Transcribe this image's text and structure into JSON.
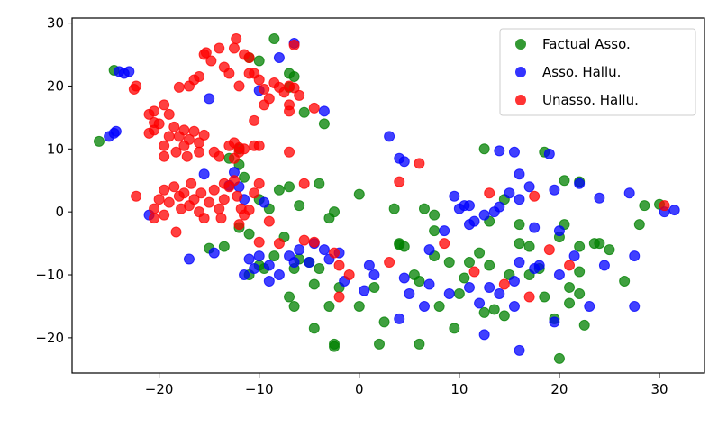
{
  "chart_data": {
    "type": "scatter",
    "title": "",
    "xlabel": "",
    "ylabel": "",
    "xlim": [
      -28.7,
      34.5
    ],
    "ylim": [
      -25.6,
      30.8
    ],
    "xticks": [
      -20,
      -10,
      0,
      10,
      20,
      30
    ],
    "yticks": [
      -20,
      -10,
      0,
      10,
      20,
      30
    ],
    "grid": false,
    "legend_position": "top-right",
    "series": [
      {
        "name": "Factual Asso.",
        "color": "#008000",
        "points": [
          [
            -26,
            11.2
          ],
          [
            -24.5,
            22.5
          ],
          [
            -11,
            24.5
          ],
          [
            -10,
            24
          ],
          [
            -8.5,
            27.5
          ],
          [
            -7,
            22
          ],
          [
            -6.5,
            21.5
          ],
          [
            -7,
            19.8
          ],
          [
            -5.5,
            15.8
          ],
          [
            -3.5,
            14
          ],
          [
            -12,
            10
          ],
          [
            -13,
            8.5
          ],
          [
            -12,
            7.5
          ],
          [
            -11.5,
            5.5
          ],
          [
            -10,
            2
          ],
          [
            -13.5,
            -5.5
          ],
          [
            -15,
            -5.8
          ],
          [
            -12,
            -2.5
          ],
          [
            -11,
            -3.5
          ],
          [
            -9,
            0.5
          ],
          [
            -8,
            3.5
          ],
          [
            -7,
            4
          ],
          [
            -6,
            1
          ],
          [
            -4,
            4.5
          ],
          [
            -2.5,
            0
          ],
          [
            -3,
            -1
          ],
          [
            0,
            2.8
          ],
          [
            -7.5,
            -4
          ],
          [
            -8.5,
            -7
          ],
          [
            -9.5,
            -9
          ],
          [
            -10,
            -8.5
          ],
          [
            -11,
            -10
          ],
          [
            -6.5,
            -9
          ],
          [
            -5,
            -8
          ],
          [
            -6,
            -7.5
          ],
          [
            -4,
            -9
          ],
          [
            -4.5,
            -11.5
          ],
          [
            -2,
            -12
          ],
          [
            -3,
            -15
          ],
          [
            -6.5,
            -15
          ],
          [
            -7,
            -13.5
          ],
          [
            -4.5,
            -18.5
          ],
          [
            -2.5,
            -21
          ],
          [
            -2.5,
            -21.4
          ],
          [
            0,
            -15
          ],
          [
            1.5,
            -12
          ],
          [
            2,
            -21
          ],
          [
            2.5,
            -17.5
          ],
          [
            4,
            -5
          ],
          [
            4.5,
            -5.5
          ],
          [
            3.5,
            0.5
          ],
          [
            6,
            -21
          ],
          [
            6,
            -11
          ],
          [
            5.5,
            -10
          ],
          [
            7.5,
            -7
          ],
          [
            7.5,
            -3
          ],
          [
            9,
            -8
          ],
          [
            8,
            -15
          ],
          [
            10,
            -13
          ],
          [
            9.5,
            -18.5
          ],
          [
            10.5,
            -10.5
          ],
          [
            11,
            -8
          ],
          [
            12,
            -6.5
          ],
          [
            13,
            -8.5
          ],
          [
            13.5,
            -15.5
          ],
          [
            12.5,
            -16
          ],
          [
            14.5,
            -16.5
          ],
          [
            15,
            -10
          ],
          [
            16,
            -5
          ],
          [
            16,
            -2
          ],
          [
            17,
            -5.5
          ],
          [
            17,
            -10
          ],
          [
            18,
            -9
          ],
          [
            18.5,
            -13.5
          ],
          [
            19.5,
            -17
          ],
          [
            20,
            -23.3
          ],
          [
            21,
            -12
          ],
          [
            21,
            -14.5
          ],
          [
            22,
            -13
          ],
          [
            22.5,
            -18
          ],
          [
            22,
            -9.5
          ],
          [
            23.5,
            -5
          ],
          [
            25,
            -6
          ],
          [
            26.5,
            -11
          ],
          [
            28,
            -2
          ],
          [
            28.5,
            1
          ],
          [
            30,
            1.2
          ],
          [
            20.5,
            5
          ],
          [
            22,
            4.8
          ],
          [
            18.5,
            9.5
          ],
          [
            12.5,
            10
          ],
          [
            14.5,
            2
          ],
          [
            13,
            -1.5
          ],
          [
            7.5,
            -0.5
          ],
          [
            6.5,
            0.5
          ],
          [
            4,
            -5.2
          ],
          [
            22,
            -5.5
          ],
          [
            20,
            -4
          ],
          [
            24,
            -5
          ],
          [
            20.5,
            -2
          ]
        ]
      },
      {
        "name": "Asso. Hallu.",
        "color": "#0000ff",
        "points": [
          [
            -24,
            22.3
          ],
          [
            -23.5,
            22
          ],
          [
            -23,
            22.3
          ],
          [
            -24.5,
            12.5
          ],
          [
            -25,
            12
          ],
          [
            -24.3,
            12.8
          ],
          [
            -15,
            18
          ],
          [
            -10,
            19.3
          ],
          [
            -8,
            24.5
          ],
          [
            -6.5,
            26.8
          ],
          [
            -3.5,
            16
          ],
          [
            -12.5,
            6.3
          ],
          [
            -15.5,
            6
          ],
          [
            -12,
            4
          ],
          [
            -11.5,
            2
          ],
          [
            -9.5,
            1.5
          ],
          [
            -17,
            -7.5
          ],
          [
            -14.5,
            -6.5
          ],
          [
            -21,
            -0.5
          ],
          [
            -13,
            4.2
          ],
          [
            -7,
            -7
          ],
          [
            -6.5,
            -8
          ],
          [
            -6,
            -6
          ],
          [
            -5,
            -8
          ],
          [
            -3,
            -7.5
          ],
          [
            -2,
            -6.5
          ],
          [
            -4.5,
            -5
          ],
          [
            -3.5,
            -6
          ],
          [
            -9,
            -8.5
          ],
          [
            -8,
            -10
          ],
          [
            -9,
            -11
          ],
          [
            -10.5,
            -9
          ],
          [
            -10,
            -7
          ],
          [
            -11,
            -7.5
          ],
          [
            -11.5,
            -10
          ],
          [
            -1.5,
            -11
          ],
          [
            0.5,
            -12.5
          ],
          [
            1,
            -8.5
          ],
          [
            1.5,
            -10
          ],
          [
            4.5,
            -10.5
          ],
          [
            5,
            -13
          ],
          [
            6.5,
            -15
          ],
          [
            7,
            -11.5
          ],
          [
            4,
            -17
          ],
          [
            9,
            -13
          ],
          [
            11,
            -12
          ],
          [
            13,
            -12
          ],
          [
            12,
            -14.5
          ],
          [
            14,
            -13
          ],
          [
            15.5,
            -15
          ],
          [
            15.5,
            -11
          ],
          [
            16,
            -8
          ],
          [
            17.5,
            -9
          ],
          [
            18,
            -8.5
          ],
          [
            20,
            -10
          ],
          [
            21.5,
            -7
          ],
          [
            24.5,
            -8.5
          ],
          [
            27.5,
            -7
          ],
          [
            27.5,
            -15
          ],
          [
            23,
            -15
          ],
          [
            16,
            -22
          ],
          [
            12.5,
            -19.5
          ],
          [
            19.5,
            -17.5
          ],
          [
            24,
            2.2
          ],
          [
            27,
            3
          ],
          [
            30.5,
            0
          ],
          [
            31.5,
            0.3
          ],
          [
            9.5,
            2.5
          ],
          [
            10,
            0.5
          ],
          [
            11,
            1
          ],
          [
            11.5,
            -1.5
          ],
          [
            12.5,
            -0.5
          ],
          [
            13.5,
            0
          ],
          [
            14,
            0.8
          ],
          [
            11,
            -2
          ],
          [
            16,
            2
          ],
          [
            15,
            3
          ],
          [
            16,
            6
          ],
          [
            17,
            4
          ],
          [
            19.5,
            3.5
          ],
          [
            19,
            9.2
          ],
          [
            14,
            9.7
          ],
          [
            15.5,
            9.5
          ],
          [
            10.5,
            1
          ],
          [
            3,
            12
          ],
          [
            4,
            8.5
          ],
          [
            4.5,
            8
          ],
          [
            7,
            -6
          ],
          [
            8.5,
            -3
          ],
          [
            22,
            4.5
          ],
          [
            17.5,
            -2.5
          ],
          [
            20,
            -3
          ]
        ]
      },
      {
        "name": "Unasso. Hallu.",
        "color": "#ff0000",
        "points": [
          [
            -22.5,
            19.5
          ],
          [
            -22.3,
            20
          ],
          [
            -21,
            15.5
          ],
          [
            -20.5,
            16
          ],
          [
            -20,
            14
          ],
          [
            -19.5,
            17
          ],
          [
            -19,
            15.5
          ],
          [
            -18,
            19.8
          ],
          [
            -17,
            20
          ],
          [
            -16.5,
            21
          ],
          [
            -16,
            21.5
          ],
          [
            -15.5,
            25
          ],
          [
            -15.3,
            25.3
          ],
          [
            -14.8,
            24
          ],
          [
            -14,
            26
          ],
          [
            -13.5,
            23
          ],
          [
            -13,
            22
          ],
          [
            -12.5,
            26
          ],
          [
            -12.3,
            27.5
          ],
          [
            -12,
            20
          ],
          [
            -11.5,
            25
          ],
          [
            -11,
            24.5
          ],
          [
            -11,
            22
          ],
          [
            -10.5,
            22
          ],
          [
            -10,
            21
          ],
          [
            -9.5,
            19.5
          ],
          [
            -9,
            18
          ],
          [
            -8.5,
            20.5
          ],
          [
            -8,
            19.8
          ],
          [
            -7.5,
            19
          ],
          [
            -7,
            20
          ],
          [
            -6.5,
            19.7
          ],
          [
            -6,
            18.5
          ],
          [
            -7,
            17
          ],
          [
            -6.5,
            26.5
          ],
          [
            -7,
            16
          ],
          [
            -9.5,
            17
          ],
          [
            -10.5,
            14.5
          ],
          [
            -4.5,
            16.5
          ],
          [
            -20.5,
            14.2
          ],
          [
            -21,
            12.5
          ],
          [
            -20.5,
            13
          ],
          [
            -19.5,
            10.5
          ],
          [
            -19,
            12
          ],
          [
            -18.5,
            13.5
          ],
          [
            -18,
            12
          ],
          [
            -17.5,
            13
          ],
          [
            -17,
            11.5
          ],
          [
            -17.5,
            10.5
          ],
          [
            -16.5,
            12.8
          ],
          [
            -16,
            11
          ],
          [
            -15.5,
            12.2
          ],
          [
            -16,
            9.5
          ],
          [
            -18.3,
            9.5
          ],
          [
            -19.5,
            8.8
          ],
          [
            -17.2,
            8.8
          ],
          [
            -13,
            10.5
          ],
          [
            -12.5,
            11
          ],
          [
            -12,
            9.5
          ],
          [
            -12.5,
            8.5
          ],
          [
            -11.5,
            10
          ],
          [
            -10.5,
            10.5
          ],
          [
            -10,
            10.5
          ],
          [
            -12,
            10.2
          ],
          [
            -7,
            9.5
          ],
          [
            -14.5,
            9.5
          ],
          [
            -14,
            8.8
          ],
          [
            -22.3,
            2.5
          ],
          [
            -20.5,
            0.5
          ],
          [
            -20,
            2
          ],
          [
            -19.5,
            3.5
          ],
          [
            -19,
            1.5
          ],
          [
            -18.5,
            4
          ],
          [
            -18,
            2.5
          ],
          [
            -17.8,
            0.5
          ],
          [
            -17.5,
            3
          ],
          [
            -17,
            1
          ],
          [
            -16.8,
            4.5
          ],
          [
            -16.5,
            2
          ],
          [
            -16,
            0
          ],
          [
            -15.8,
            3
          ],
          [
            -15.5,
            -1
          ],
          [
            -15,
            1.5
          ],
          [
            -14.5,
            3.5
          ],
          [
            -14,
            0.5
          ],
          [
            -13.8,
            -1
          ],
          [
            -13.5,
            2
          ],
          [
            -13,
            4
          ],
          [
            -12.5,
            5
          ],
          [
            -12.2,
            2.5
          ],
          [
            -11.8,
            0.5
          ],
          [
            -19.5,
            -0.5
          ],
          [
            -20.5,
            -1
          ],
          [
            -18.3,
            -3.2
          ],
          [
            -12,
            -2
          ],
          [
            -13.5,
            4.5
          ],
          [
            -10,
            4.5
          ],
          [
            -11.5,
            -0.5
          ],
          [
            -11,
            0.3
          ],
          [
            -10.5,
            3
          ],
          [
            -5.5,
            4.5
          ],
          [
            -9,
            -1.5
          ],
          [
            -10,
            -4.8
          ],
          [
            -8,
            -5
          ],
          [
            -5.5,
            -4.5
          ],
          [
            -4.5,
            -4.8
          ],
          [
            -2.5,
            -6.5
          ],
          [
            -2,
            -13.5
          ],
          [
            -1,
            -10
          ],
          [
            3,
            -8
          ],
          [
            4,
            4.8
          ],
          [
            6,
            7.7
          ],
          [
            8.5,
            -5
          ],
          [
            11.5,
            -9.5
          ],
          [
            13,
            3
          ],
          [
            14.5,
            -11.5
          ],
          [
            17,
            -13.5
          ],
          [
            17.5,
            2.5
          ],
          [
            19,
            -6
          ],
          [
            21,
            -8.5
          ],
          [
            30.5,
            1
          ],
          [
            -2,
            -8.5
          ]
        ]
      }
    ]
  }
}
